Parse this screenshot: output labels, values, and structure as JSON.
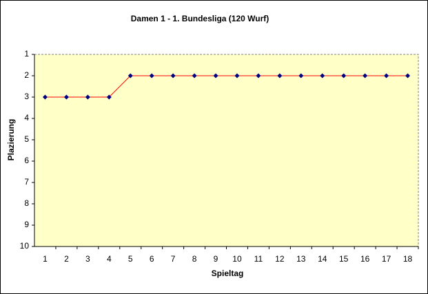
{
  "chart_data": {
    "type": "line",
    "title": "Damen 1 - 1. Bundesliga (120 Wurf)",
    "x_label": "Spieltag",
    "y_label": "Plazierung",
    "x": [
      1,
      2,
      3,
      4,
      5,
      6,
      7,
      8,
      9,
      10,
      11,
      12,
      13,
      14,
      15,
      16,
      17,
      18
    ],
    "xlim": [
      0.5,
      18.5
    ],
    "xticks": [
      1,
      2,
      3,
      4,
      5,
      6,
      7,
      8,
      9,
      10,
      11,
      12,
      13,
      14,
      15,
      16,
      17,
      18
    ],
    "series": [
      {
        "color": "#ff0000",
        "marker_color": "#000080",
        "values": [
          3,
          3,
          3,
          3,
          2,
          2,
          2,
          2,
          2,
          2,
          2,
          2,
          2,
          2,
          2,
          2,
          2,
          2
        ]
      }
    ],
    "ylim": [
      1,
      10
    ],
    "yticks": [
      1,
      2,
      3,
      4,
      5,
      6,
      7,
      8,
      9,
      10
    ],
    "y_reversed": true,
    "plot_background": "#ffffc8",
    "grid": false
  }
}
